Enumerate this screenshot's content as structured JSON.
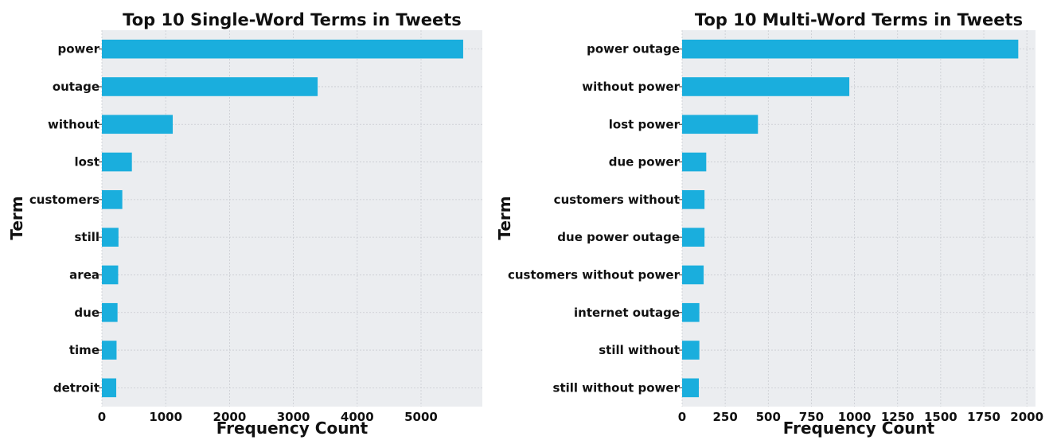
{
  "colors": {
    "bar": "#1aaedd",
    "plot_bg": "#ebedf0",
    "grid": "#c9ccd1",
    "text": "#111111"
  },
  "chart_data": [
    {
      "type": "bar",
      "orientation": "horizontal",
      "title": "Top 10 Single-Word Terms in Tweets",
      "xlabel": "Frequency Count",
      "ylabel": "Term",
      "categories": [
        "power",
        "outage",
        "without",
        "lost",
        "customers",
        "still",
        "area",
        "due",
        "time",
        "detroit"
      ],
      "values": [
        5660,
        3380,
        1110,
        470,
        320,
        260,
        255,
        245,
        230,
        225
      ],
      "xlim": [
        0,
        5960
      ],
      "xticks": [
        0,
        1000,
        2000,
        3000,
        4000,
        5000
      ],
      "grid": true
    },
    {
      "type": "bar",
      "orientation": "horizontal",
      "title": "Top 10 Multi-Word Terms in Tweets",
      "xlabel": "Frequency Count",
      "ylabel": "Term",
      "categories": [
        "power outage",
        "without power",
        "lost power",
        "due power",
        "customers without",
        "due power outage",
        "customers without power",
        "internet outage",
        "still without",
        "still without power"
      ],
      "values": [
        1950,
        970,
        440,
        140,
        130,
        130,
        125,
        100,
        100,
        97
      ],
      "xlim": [
        0,
        2050
      ],
      "xticks": [
        0,
        250,
        500,
        750,
        1000,
        1250,
        1500,
        1750,
        2000
      ],
      "grid": true
    }
  ]
}
